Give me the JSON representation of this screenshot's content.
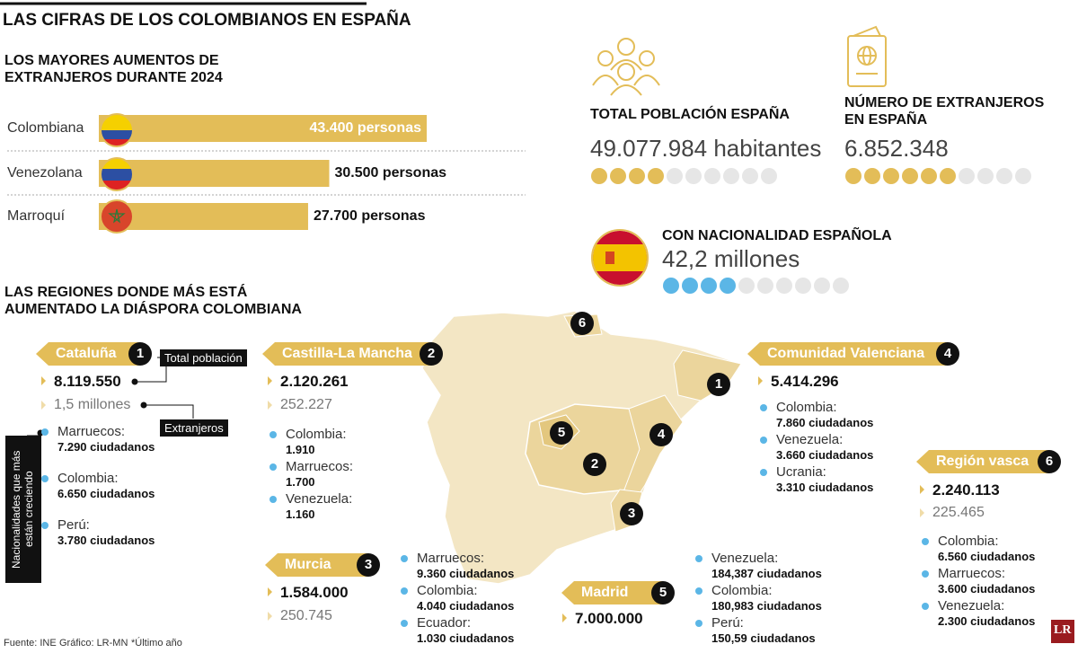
{
  "title": "LAS CIFRAS DE LOS COLOMBIANOS EN ESPAÑA",
  "increases": {
    "title": "LOS MAYORES AUMENTOS DE EXTRANJEROS DURANTE 2024",
    "bars": [
      {
        "label": "Colombiana",
        "value": 43400,
        "value_label": "43.400 personas"
      },
      {
        "label": "Venezolana",
        "value": 30500,
        "value_label": "30.500 personas"
      },
      {
        "label": "Marroquí",
        "value": 27700,
        "value_label": "27.700 personas"
      }
    ]
  },
  "stats": {
    "dots_total": 10,
    "items": [
      {
        "title": "TOTAL POBLACIÓN ESPAÑA",
        "value": "49.077.984 habitantes",
        "dots": 4
      },
      {
        "title": "NÚMERO DE EXTRANJEROS EN ESPAÑA",
        "value": "6.852.348",
        "dots": 6
      },
      {
        "title": "CON NACIONALIDAD ESPAÑOLA",
        "value": "42,2 millones",
        "dots": 4
      }
    ]
  },
  "regions_title": "LAS REGIONES DONDE MÁS ESTÁ AUMENTADO LA DIÁSPORA COLOMBIANA",
  "legend": {
    "population": "Total población",
    "foreigners": "Extranjeros",
    "nationalities": "Nacionalidades que más están creciendo"
  },
  "regions": [
    {
      "number": 1,
      "name": "Cataluña",
      "population": "8.119.550",
      "foreigners": "1,5 millones",
      "nationalities": [
        {
          "name": "Marruecos:",
          "count": "7.290 ciudadanos"
        },
        {
          "name": "Colombia:",
          "count": "6.650 ciudadanos"
        },
        {
          "name": "Perú:",
          "count": "3.780 ciudadanos"
        }
      ]
    },
    {
      "number": 2,
      "name": "Castilla-La Mancha",
      "population": "2.120.261",
      "foreigners": "252.227",
      "nationalities": [
        {
          "name": "Colombia:",
          "count": "1.910"
        },
        {
          "name": "Marruecos:",
          "count": "1.700"
        },
        {
          "name": "Venezuela:",
          "count": "1.160"
        }
      ]
    },
    {
      "number": 3,
      "name": "Murcia",
      "population": "1.584.000",
      "foreigners": "250.745",
      "nationalities": [
        {
          "name": "Marruecos:",
          "count": "9.360 ciudadanos"
        },
        {
          "name": "Colombia:",
          "count": "4.040 ciudadanos"
        },
        {
          "name": "Ecuador:",
          "count": "1.030 ciudadanos"
        }
      ]
    },
    {
      "number": 4,
      "name": "Comunidad Valenciana",
      "population": "5.414.296",
      "nationalities": [
        {
          "name": "Colombia:",
          "count": "7.860 ciudadanos"
        },
        {
          "name": "Venezuela:",
          "count": "3.660 ciudadanos"
        },
        {
          "name": "Ucrania:",
          "count": "3.310 ciudadanos"
        }
      ]
    },
    {
      "number": 5,
      "name": "Madrid",
      "population": "7.000.000",
      "nationalities": [
        {
          "name": "Venezuela:",
          "count": "184,387 ciudadanos"
        },
        {
          "name": "Colombia:",
          "count": "180,983 ciudadanos"
        },
        {
          "name": "Perú:",
          "count": "150,59 ciudadanos"
        }
      ]
    },
    {
      "number": 6,
      "name": "Región vasca",
      "population": "2.240.113",
      "foreigners": "225.465",
      "nationalities": [
        {
          "name": "Colombia:",
          "count": "6.560 ciudadanos"
        },
        {
          "name": "Marruecos:",
          "count": "3.600 ciudadanos"
        },
        {
          "name": "Venezuela:",
          "count": "2.300 ciudadanos"
        }
      ]
    }
  ],
  "footer": {
    "source": "Fuente: INE",
    "graphic": "Gráfico: LR-MN",
    "note": "*Último año",
    "logo": "LR"
  }
}
